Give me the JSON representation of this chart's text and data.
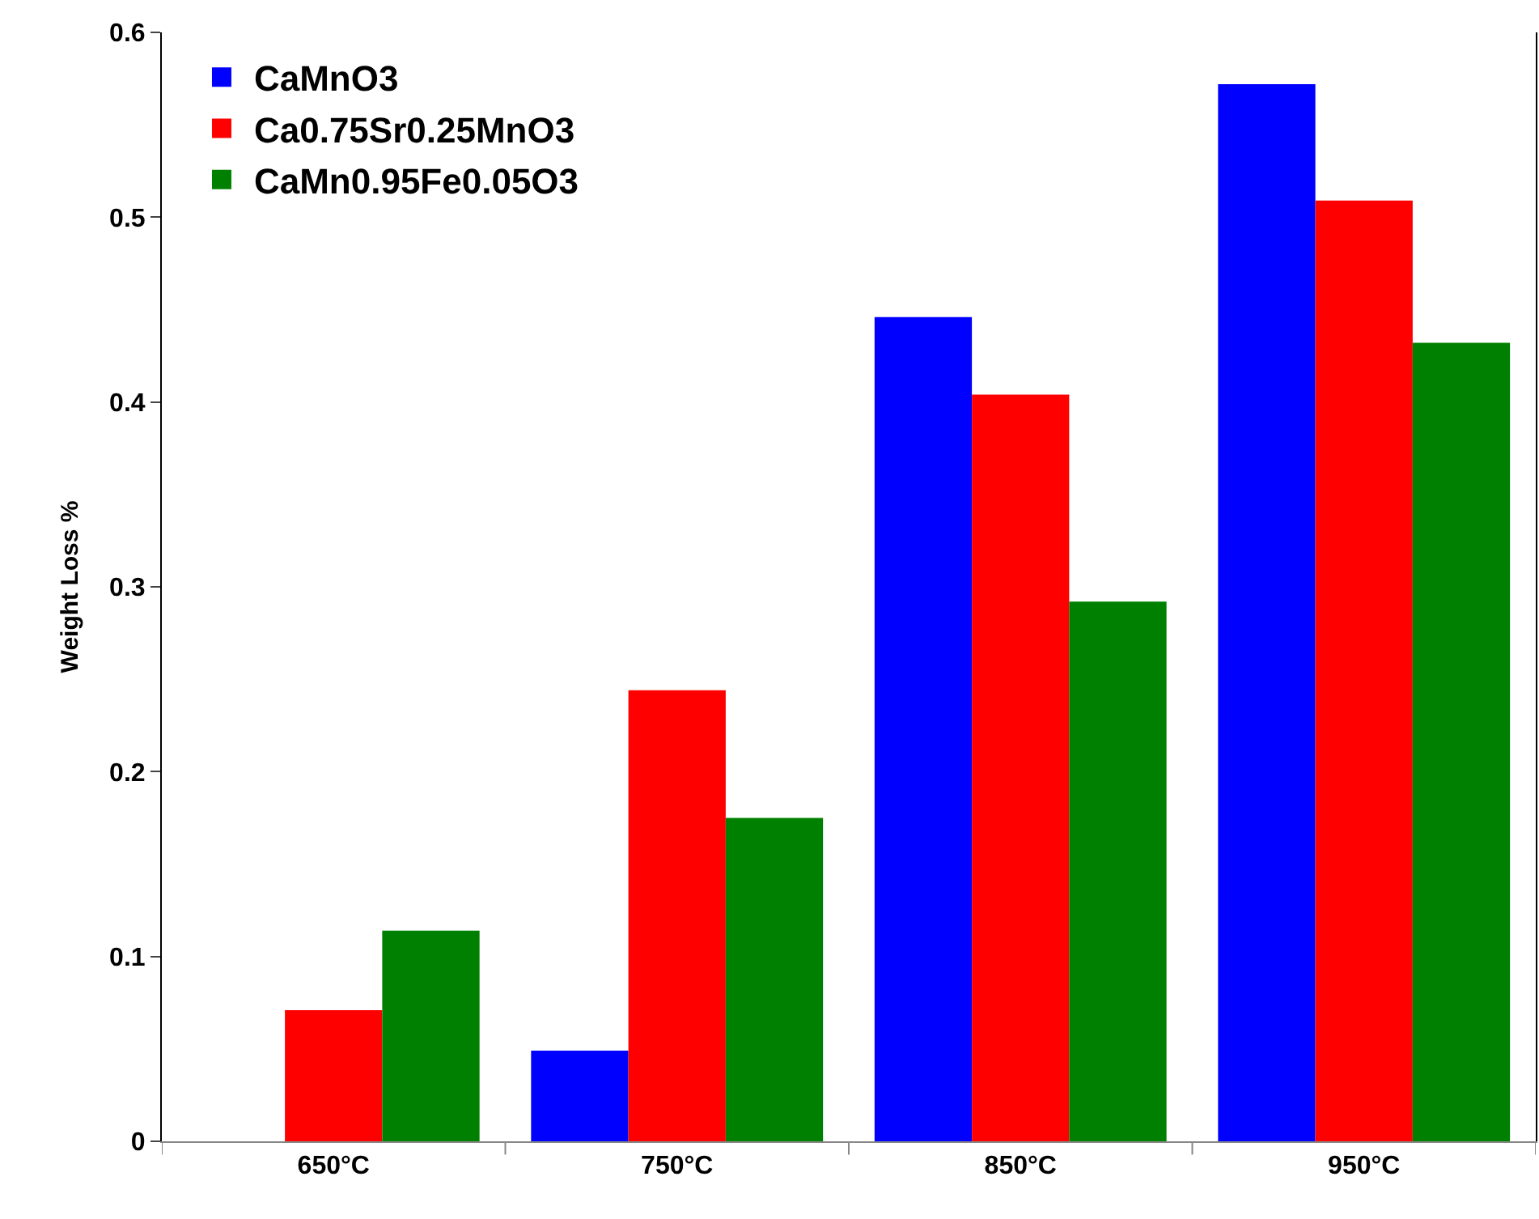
{
  "chart_data": {
    "type": "bar",
    "ylabel": "Weight Loss %",
    "categories": [
      "650°C",
      "750°C",
      "850°C",
      "950°C"
    ],
    "series": [
      {
        "name": "CaMnO3",
        "color": "#0000ff",
        "values": [
          0,
          0.049,
          0.446,
          0.572
        ]
      },
      {
        "name": "Ca0.75Sr0.25MnO3",
        "color": "#ff0000",
        "values": [
          0.071,
          0.244,
          0.404,
          0.509
        ]
      },
      {
        "name": "CaMn0.95Fe0.05O3",
        "color": "#008000",
        "values": [
          0.114,
          0.175,
          0.292,
          0.432
        ]
      }
    ],
    "ylim": [
      0,
      0.6
    ],
    "yticks": [
      0,
      0.1,
      0.2,
      0.3,
      0.4,
      0.5,
      0.6
    ],
    "legend": "top left"
  }
}
